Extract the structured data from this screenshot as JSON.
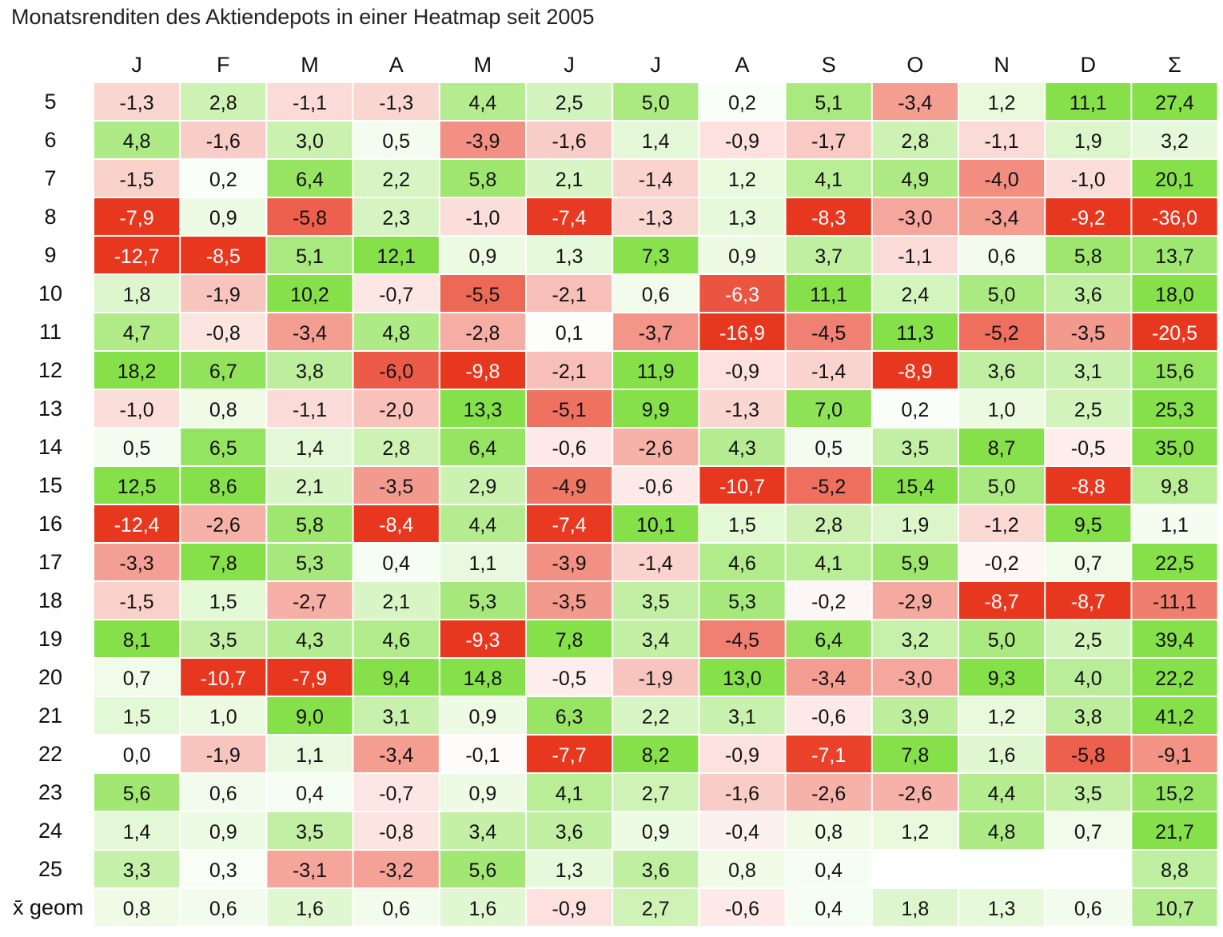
{
  "chart_data": {
    "type": "heatmap",
    "title": "Monatsrenditen des Aktiendepots in einer Heatmap seit 2005",
    "columns": [
      "J",
      "F",
      "M",
      "A",
      "M",
      "J",
      "J",
      "A",
      "S",
      "O",
      "N",
      "D",
      "Σ"
    ],
    "rows": [
      {
        "label": "5",
        "values": [
          -1.3,
          2.8,
          -1.1,
          -1.3,
          4.4,
          2.5,
          5.0,
          0.2,
          5.1,
          -3.4,
          1.2,
          11.1,
          27.4
        ]
      },
      {
        "label": "6",
        "values": [
          4.8,
          -1.6,
          3.0,
          0.5,
          -3.9,
          -1.6,
          1.4,
          -0.9,
          -1.7,
          2.8,
          -1.1,
          1.9,
          3.2
        ]
      },
      {
        "label": "7",
        "values": [
          -1.5,
          0.2,
          6.4,
          2.2,
          5.8,
          2.1,
          -1.4,
          1.2,
          4.1,
          4.9,
          -4.0,
          -1.0,
          20.1
        ]
      },
      {
        "label": "8",
        "values": [
          -7.9,
          0.9,
          -5.8,
          2.3,
          -1.0,
          -7.4,
          -1.3,
          1.3,
          -8.3,
          -3.0,
          -3.4,
          -9.2,
          -36.0
        ]
      },
      {
        "label": "9",
        "values": [
          -12.7,
          -8.5,
          5.1,
          12.1,
          0.9,
          1.3,
          7.3,
          0.9,
          3.7,
          -1.1,
          0.6,
          5.8,
          13.7
        ]
      },
      {
        "label": "10",
        "values": [
          1.8,
          -1.9,
          10.2,
          -0.7,
          -5.5,
          -2.1,
          0.6,
          -6.3,
          11.1,
          2.4,
          5.0,
          3.6,
          18.0
        ]
      },
      {
        "label": "11",
        "values": [
          4.7,
          -0.8,
          -3.4,
          4.8,
          -2.8,
          0.1,
          -3.7,
          -16.9,
          -4.5,
          11.3,
          -5.2,
          -3.5,
          -20.5
        ]
      },
      {
        "label": "12",
        "values": [
          18.2,
          6.7,
          3.8,
          -6.0,
          -9.8,
          -2.1,
          11.9,
          -0.9,
          -1.4,
          -8.9,
          3.6,
          3.1,
          15.6
        ]
      },
      {
        "label": "13",
        "values": [
          -1.0,
          0.8,
          -1.1,
          -2.0,
          13.3,
          -5.1,
          9.9,
          -1.3,
          7.0,
          0.2,
          1.0,
          2.5,
          25.3
        ]
      },
      {
        "label": "14",
        "values": [
          0.5,
          6.5,
          1.4,
          2.8,
          6.4,
          -0.6,
          -2.6,
          4.3,
          0.5,
          3.5,
          8.7,
          -0.5,
          35.0
        ]
      },
      {
        "label": "15",
        "values": [
          12.5,
          8.6,
          2.1,
          -3.5,
          2.9,
          -4.9,
          -0.6,
          -10.7,
          -5.2,
          15.4,
          5.0,
          -8.8,
          9.8
        ]
      },
      {
        "label": "16",
        "values": [
          -12.4,
          -2.6,
          5.8,
          -8.4,
          4.4,
          -7.4,
          10.1,
          1.5,
          2.8,
          1.9,
          -1.2,
          9.5,
          1.1
        ]
      },
      {
        "label": "17",
        "values": [
          -3.3,
          7.8,
          5.3,
          0.4,
          1.1,
          -3.9,
          -1.4,
          4.6,
          4.1,
          5.9,
          -0.2,
          0.7,
          22.5
        ]
      },
      {
        "label": "18",
        "values": [
          -1.5,
          1.5,
          -2.7,
          2.1,
          5.3,
          -3.5,
          3.5,
          5.3,
          -0.2,
          -2.9,
          -8.7,
          -8.7,
          -11.1
        ]
      },
      {
        "label": "19",
        "values": [
          8.1,
          3.5,
          4.3,
          4.6,
          -9.3,
          7.8,
          3.4,
          -4.5,
          6.4,
          3.2,
          5.0,
          2.5,
          39.4
        ]
      },
      {
        "label": "20",
        "values": [
          0.7,
          -10.7,
          -7.9,
          9.4,
          14.8,
          -0.5,
          -1.9,
          13.0,
          -3.4,
          -3.0,
          9.3,
          4.0,
          22.2
        ]
      },
      {
        "label": "21",
        "values": [
          1.5,
          1.0,
          9.0,
          3.1,
          0.9,
          6.3,
          2.2,
          3.1,
          -0.6,
          3.9,
          1.2,
          3.8,
          41.2
        ]
      },
      {
        "label": "22",
        "values": [
          0.0,
          -1.9,
          1.1,
          -3.4,
          -0.1,
          -7.7,
          8.2,
          -0.9,
          -7.1,
          7.8,
          1.6,
          -5.8,
          -9.1
        ]
      },
      {
        "label": "23",
        "values": [
          5.6,
          0.6,
          0.4,
          -0.7,
          0.9,
          4.1,
          2.7,
          -1.6,
          -2.6,
          -2.6,
          4.4,
          3.5,
          15.2
        ]
      },
      {
        "label": "24",
        "values": [
          1.4,
          0.9,
          3.5,
          -0.8,
          3.4,
          3.6,
          0.9,
          -0.4,
          0.8,
          1.2,
          4.8,
          0.7,
          21.7
        ]
      },
      {
        "label": "25",
        "values": [
          3.3,
          0.3,
          -3.1,
          -3.2,
          5.6,
          1.3,
          3.6,
          0.8,
          0.4,
          null,
          null,
          null,
          8.8
        ]
      },
      {
        "label": "x̄ geom",
        "values": [
          0.8,
          0.6,
          1.6,
          0.6,
          1.6,
          -0.9,
          2.7,
          -0.6,
          0.4,
          1.8,
          1.3,
          0.6,
          10.7
        ]
      }
    ],
    "decimal_separator": ",",
    "color_scale": {
      "negative": "#e8371f",
      "neutral": "#ffffff",
      "positive": "#86e04a"
    }
  }
}
